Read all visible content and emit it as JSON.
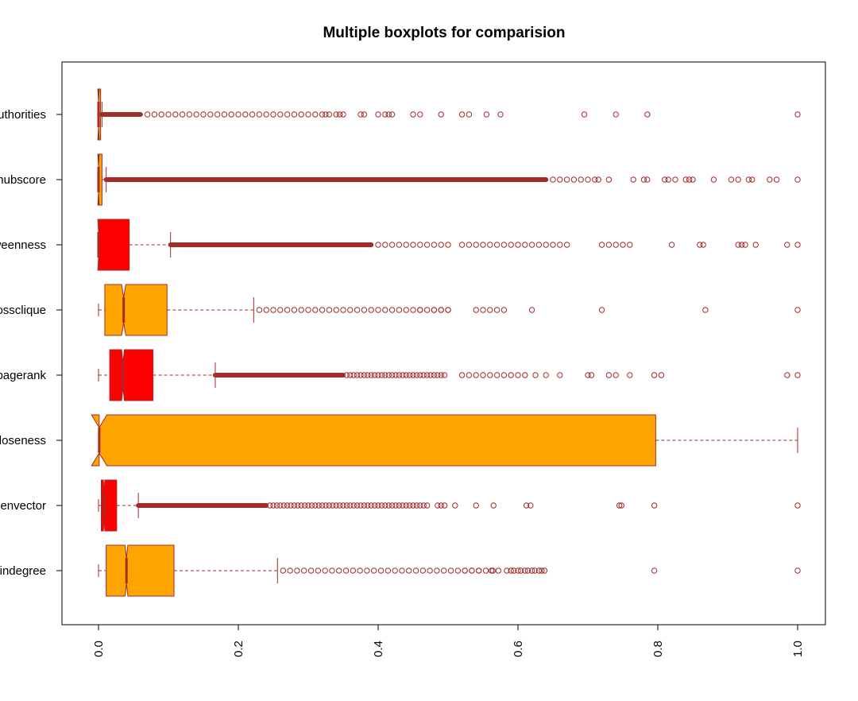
{
  "chart_data": {
    "type": "boxplot",
    "orientation": "horizontal",
    "notched": true,
    "title": "Multiple boxplots for comparision",
    "xlabel": "",
    "ylabel": "",
    "xlim": [
      0,
      1
    ],
    "x_ticks": [
      "0.0",
      "0.2",
      "0.4",
      "0.6",
      "0.8",
      "1.0"
    ],
    "grid": false,
    "colors": {
      "orange": "#FFA500",
      "red": "#FF0000",
      "outline": "#A52A2A"
    },
    "series": [
      {
        "label": "indegree",
        "fill": "#FFA500",
        "whisker_low": 0.0,
        "q1": 0.011,
        "median": 0.04,
        "q3": 0.108,
        "whisker_high": 0.256,
        "notch": [
          0.038,
          0.042
        ],
        "outliers": [
          0.264,
          0.274,
          0.284,
          0.294,
          0.304,
          0.314,
          0.324,
          0.334,
          0.344,
          0.354,
          0.364,
          0.374,
          0.384,
          0.394,
          0.404,
          0.414,
          0.424,
          0.434,
          0.444,
          0.454,
          0.464,
          0.474,
          0.484,
          0.494,
          0.504,
          0.514,
          0.524,
          0.534,
          0.544,
          0.554,
          0.564,
          0.584,
          0.594,
          0.604,
          0.614,
          0.624,
          0.634,
          0.524,
          0.534,
          0.544,
          0.562,
          0.572,
          0.59,
          0.6,
          0.61,
          0.62,
          0.63,
          0.638,
          0.795,
          1.0
        ]
      },
      {
        "label": "eigenvector",
        "fill": "#FF0000",
        "whisker_low": 0.0,
        "q1": 0.004,
        "median": 0.008,
        "q3": 0.026,
        "whisker_high": 0.057,
        "notch": [
          0.007,
          0.009
        ],
        "dense_outliers": [
          0.057,
          0.24
        ],
        "outliers": [
          0.245,
          0.25,
          0.255,
          0.26,
          0.265,
          0.27,
          0.275,
          0.28,
          0.285,
          0.29,
          0.295,
          0.3,
          0.305,
          0.31,
          0.315,
          0.32,
          0.325,
          0.33,
          0.335,
          0.34,
          0.345,
          0.35,
          0.355,
          0.36,
          0.365,
          0.37,
          0.375,
          0.38,
          0.385,
          0.39,
          0.395,
          0.4,
          0.405,
          0.41,
          0.415,
          0.42,
          0.425,
          0.43,
          0.435,
          0.44,
          0.445,
          0.45,
          0.455,
          0.46,
          0.465,
          0.47,
          0.485,
          0.49,
          0.495,
          0.51,
          0.54,
          0.565,
          0.612,
          0.618,
          0.745,
          0.748,
          0.795,
          1.0
        ]
      },
      {
        "label": "closeness",
        "fill": "#FFA500",
        "whisker_low": 0.0,
        "q1": 0.001,
        "median": 0.001,
        "q3": 0.797,
        "whisker_high": 1.0,
        "notch": [
          -0.01,
          0.012
        ],
        "outliers": []
      },
      {
        "label": "pagerank",
        "fill": "#FF0000",
        "whisker_low": 0.0,
        "q1": 0.016,
        "median": 0.035,
        "q3": 0.078,
        "whisker_high": 0.167,
        "notch": [
          0.033,
          0.037
        ],
        "dense_outliers": [
          0.167,
          0.35
        ],
        "outliers": [
          0.355,
          0.36,
          0.365,
          0.37,
          0.375,
          0.38,
          0.385,
          0.39,
          0.395,
          0.4,
          0.405,
          0.41,
          0.415,
          0.42,
          0.425,
          0.43,
          0.435,
          0.44,
          0.445,
          0.45,
          0.455,
          0.46,
          0.465,
          0.47,
          0.475,
          0.48,
          0.485,
          0.49,
          0.495,
          0.52,
          0.53,
          0.54,
          0.55,
          0.56,
          0.57,
          0.58,
          0.59,
          0.6,
          0.61,
          0.625,
          0.64,
          0.66,
          0.7,
          0.705,
          0.73,
          0.74,
          0.76,
          0.795,
          0.805,
          0.985,
          1.0
        ]
      },
      {
        "label": "crossclique",
        "fill": "#FFA500",
        "whisker_low": 0.0,
        "q1": 0.009,
        "median": 0.036,
        "q3": 0.098,
        "whisker_high": 0.222,
        "notch": [
          0.033,
          0.039
        ],
        "outliers": [
          0.23,
          0.24,
          0.25,
          0.26,
          0.27,
          0.28,
          0.29,
          0.3,
          0.31,
          0.32,
          0.33,
          0.34,
          0.35,
          0.36,
          0.37,
          0.38,
          0.39,
          0.4,
          0.41,
          0.42,
          0.43,
          0.44,
          0.45,
          0.46,
          0.47,
          0.48,
          0.49,
          0.5,
          0.46,
          0.48,
          0.49,
          0.5,
          0.54,
          0.55,
          0.56,
          0.57,
          0.58,
          0.62,
          0.72,
          0.868,
          1.0
        ]
      },
      {
        "label": "betweenness",
        "fill": "#FF0000",
        "whisker_low": 0.0,
        "q1": 0.0,
        "median": 0.0,
        "q3": 0.044,
        "whisker_high": 0.103,
        "notch": [
          -0.001,
          0.001
        ],
        "dense_outliers": [
          0.103,
          0.39
        ],
        "outliers": [
          0.4,
          0.41,
          0.42,
          0.43,
          0.44,
          0.45,
          0.46,
          0.47,
          0.48,
          0.49,
          0.5,
          0.52,
          0.53,
          0.54,
          0.55,
          0.56,
          0.57,
          0.58,
          0.59,
          0.6,
          0.61,
          0.62,
          0.63,
          0.64,
          0.65,
          0.66,
          0.67,
          0.72,
          0.73,
          0.74,
          0.75,
          0.76,
          0.82,
          0.86,
          0.865,
          0.915,
          0.92,
          0.925,
          0.94,
          0.985,
          1.0
        ]
      },
      {
        "label": "hubscore",
        "fill": "#FFA500",
        "whisker_low": 0.0,
        "q1": 0.0,
        "median": 0.0,
        "q3": 0.005,
        "whisker_high": 0.011,
        "notch": [
          -0.001,
          0.001
        ],
        "dense_outliers": [
          0.011,
          0.64
        ],
        "outliers": [
          0.65,
          0.66,
          0.67,
          0.68,
          0.69,
          0.7,
          0.71,
          0.715,
          0.73,
          0.765,
          0.78,
          0.785,
          0.81,
          0.815,
          0.825,
          0.84,
          0.845,
          0.85,
          0.88,
          0.905,
          0.915,
          0.93,
          0.935,
          0.96,
          0.97,
          1.0
        ]
      },
      {
        "label": "authorities",
        "fill": "#FFA500",
        "whisker_low": 0.0,
        "q1": 0.0,
        "median": 0.0,
        "q3": 0.003,
        "whisker_high": 0.005,
        "notch": [
          -0.001,
          0.001
        ],
        "dense_outliers": [
          0.005,
          0.06
        ],
        "outliers": [
          0.07,
          0.08,
          0.09,
          0.1,
          0.11,
          0.12,
          0.13,
          0.14,
          0.15,
          0.16,
          0.17,
          0.18,
          0.19,
          0.2,
          0.21,
          0.22,
          0.23,
          0.24,
          0.25,
          0.26,
          0.27,
          0.28,
          0.29,
          0.3,
          0.31,
          0.32,
          0.325,
          0.33,
          0.34,
          0.345,
          0.35,
          0.375,
          0.38,
          0.4,
          0.41,
          0.415,
          0.42,
          0.45,
          0.46,
          0.49,
          0.52,
          0.53,
          0.555,
          0.575,
          0.695,
          0.74,
          0.785,
          1.0
        ]
      }
    ]
  }
}
